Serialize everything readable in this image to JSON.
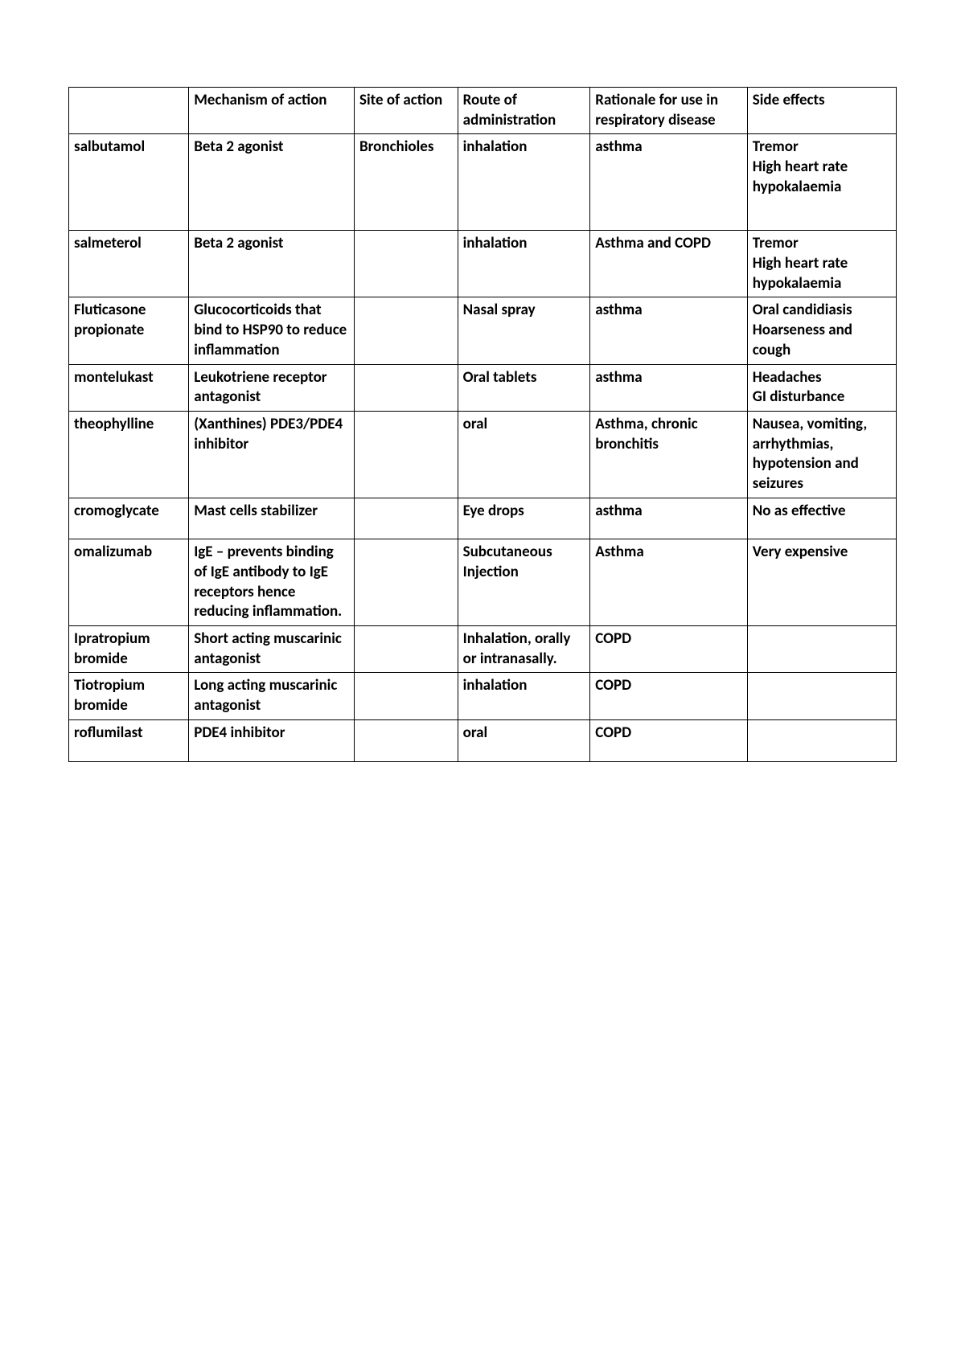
{
  "table": {
    "border_color": "#000000",
    "background_color": "#ffffff",
    "font_family": "Calibri",
    "header_font_weight": "bold",
    "cell_font_size": 19,
    "text_color": "#000000",
    "column_widths_percent": [
      14.5,
      20,
      12.5,
      16,
      19,
      18
    ],
    "columns": [
      "",
      "Mechanism of action",
      "Site of action",
      "Route of administration",
      "Rationale for use in respiratory disease",
      "Side effects"
    ],
    "rows": [
      {
        "drug": "salbutamol",
        "mechanism": "Beta 2 agonist",
        "site": "Bronchioles",
        "route": "inhalation",
        "rationale": "asthma",
        "side_effects": "Tremor\nHigh heart rate\nhypokalaemia",
        "extra_height": true
      },
      {
        "drug": "salmeterol",
        "mechanism": "Beta 2 agonist",
        "site": "",
        "route": "inhalation",
        "rationale": "Asthma and COPD",
        "side_effects": "Tremor\nHigh heart rate\nhypokalaemia"
      },
      {
        "drug": "Fluticasone propionate",
        "mechanism": "Glucocorticoids that bind to HSP90 to reduce inflammation",
        "site": "",
        "route": "Nasal spray",
        "rationale": "asthma",
        "side_effects": "Oral candidiasis\nHoarseness and cough"
      },
      {
        "drug": "montelukast",
        "mechanism": "Leukotriene receptor antagonist",
        "site": "",
        "route": "Oral tablets",
        "rationale": "asthma",
        "side_effects": "Headaches\nGI disturbance"
      },
      {
        "drug": "theophylline",
        "mechanism": "(Xanthines) PDE3/PDE4 inhibitor",
        "site": "",
        "route": "oral",
        "rationale": "Asthma, chronic bronchitis",
        "side_effects": "Nausea, vomiting, arrhythmias, hypotension and seizures"
      },
      {
        "drug": "cromoglycate",
        "mechanism": "Mast cells stabilizer",
        "site": "",
        "route": "Eye drops",
        "rationale": "asthma",
        "side_effects": "No as effective",
        "extra_pad": true
      },
      {
        "drug": "omalizumab",
        "mechanism": "IgE – prevents binding of IgE antibody to IgE receptors hence reducing inflammation.",
        "site": "",
        "route": "Subcutaneous Injection",
        "rationale": "Asthma",
        "side_effects": "Very expensive"
      },
      {
        "drug": "Ipratropium bromide",
        "mechanism": "Short acting muscarinic antagonist",
        "site": "",
        "route": "Inhalation, orally or intranasally.",
        "rationale": "COPD",
        "side_effects": ""
      },
      {
        "drug": "Tiotropium bromide",
        "mechanism": "Long acting muscarinic antagonist",
        "site": "",
        "route": "inhalation",
        "rationale": "COPD",
        "side_effects": ""
      },
      {
        "drug": "roflumilast",
        "mechanism": "PDE4 inhibitor",
        "site": "",
        "route": "oral",
        "rationale": "COPD",
        "side_effects": "",
        "extra_pad": true
      }
    ]
  }
}
